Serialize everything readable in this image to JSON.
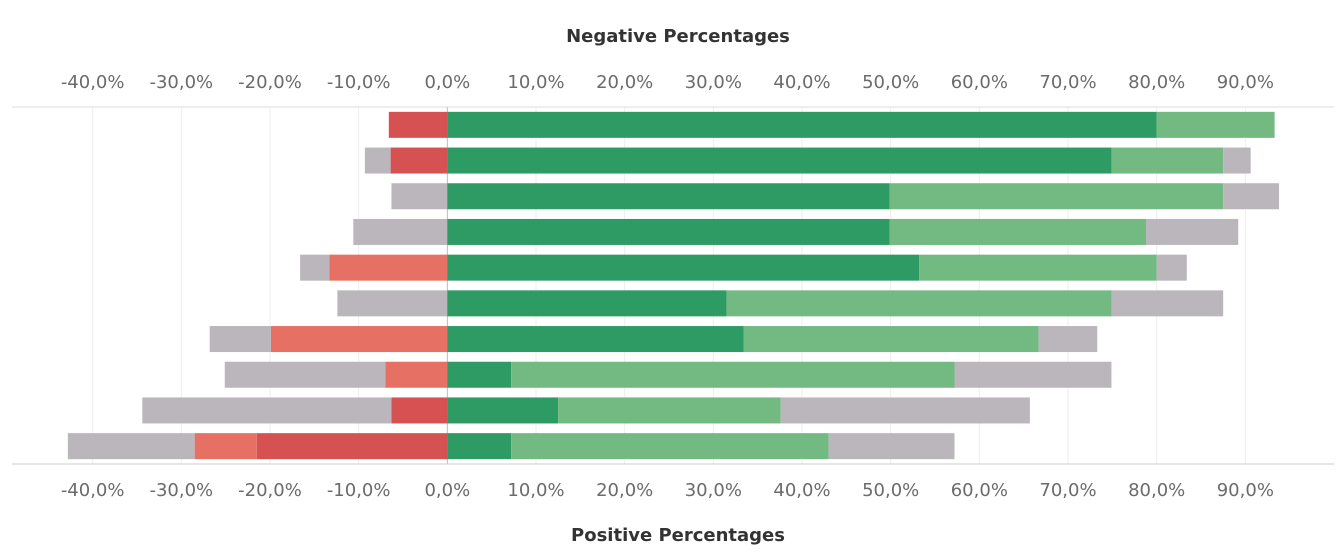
{
  "chart_data": {
    "type": "diverging_stacked_bar",
    "title": "Negative Percentages",
    "x_label": "Positive Percentages",
    "categories": [
      null,
      null,
      null,
      null,
      null,
      null,
      null,
      null,
      null,
      null
    ],
    "series": [
      {
        "color": "#d65252",
        "side": "negative",
        "values": [
          -6.6,
          -6.4,
          0,
          0,
          0,
          0,
          0,
          0,
          -6.3,
          -21.5
        ]
      },
      {
        "color": "#e57063",
        "side": "negative",
        "values": [
          0,
          0,
          0,
          0,
          -13.3,
          0,
          -19.9,
          -7.0,
          0,
          -7.0
        ]
      },
      {
        "color": "#bab6bb",
        "side": "negative",
        "values": [
          0,
          -2.9,
          -6.3,
          -10.6,
          -3.3,
          -12.4,
          -6.9,
          -18.1,
          -28.1,
          -14.3
        ]
      },
      {
        "color": "#2e9b64",
        "side": "positive",
        "values": [
          80.0,
          74.9,
          49.9,
          49.9,
          53.2,
          31.5,
          33.4,
          7.2,
          12.5,
          7.2
        ]
      },
      {
        "color": "#72b982",
        "side": "positive",
        "values": [
          13.3,
          12.6,
          37.6,
          28.9,
          26.8,
          43.4,
          33.3,
          50.0,
          25.1,
          35.8
        ]
      },
      {
        "color": "#bab6bb",
        "side": "positive",
        "values": [
          0,
          3.1,
          6.3,
          10.4,
          3.4,
          12.6,
          6.6,
          17.7,
          28.1,
          14.2
        ]
      }
    ],
    "xlim": [
      -50,
      100
    ],
    "xticks": [
      {
        "value": -40,
        "label": "-40,0%"
      },
      {
        "value": -30,
        "label": "-30,0%"
      },
      {
        "value": -20,
        "label": "-20,0%"
      },
      {
        "value": -10,
        "label": "-10,0%"
      },
      {
        "value": 0,
        "label": "0,0%"
      },
      {
        "value": 10,
        "label": "10,0%"
      },
      {
        "value": 20,
        "label": "20,0%"
      },
      {
        "value": 30,
        "label": "30,0%"
      },
      {
        "value": 40,
        "label": "40,0%"
      },
      {
        "value": 50,
        "label": "50,0%"
      },
      {
        "value": 60,
        "label": "60,0%"
      },
      {
        "value": 70,
        "label": "70,0%"
      },
      {
        "value": 80,
        "label": "80,0%"
      },
      {
        "value": 90,
        "label": "90,0%"
      }
    ],
    "grid": true
  }
}
